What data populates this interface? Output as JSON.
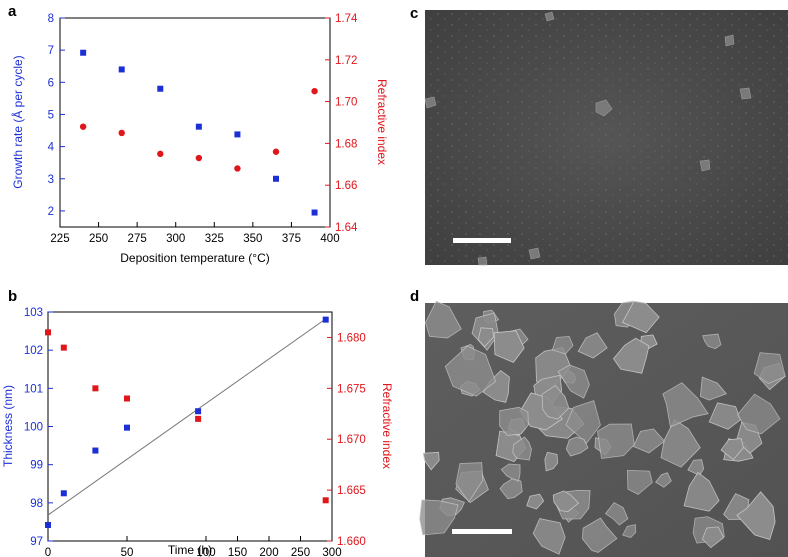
{
  "colors": {
    "left_axis": "#1c2fd6",
    "right_axis": "#e0161b",
    "fit_line": "#777777",
    "frame": "#000000",
    "sem_bg_c": "#4a4a4a",
    "sem_bg_d": "#5a5a5a"
  },
  "panels": {
    "a": {
      "letter": "a"
    },
    "b": {
      "letter": "b"
    },
    "c": {
      "letter": "c"
    },
    "d": {
      "letter": "d"
    }
  },
  "chart_data": [
    {
      "id": "a",
      "type": "scatter",
      "xlabel": "Deposition temperature (°C)",
      "ylabel_left": "Growth rate (Å per cycle)",
      "ylabel_right": "Refractive index",
      "xlim": [
        225,
        400
      ],
      "xticks": [
        "225",
        "250",
        "275",
        "300",
        "325",
        "350",
        "375",
        "400"
      ],
      "ylim_left": [
        1.5,
        8
      ],
      "yticks_left": [
        "2",
        "3",
        "4",
        "5",
        "6",
        "7",
        "8"
      ],
      "ylim_right": [
        1.64,
        1.74
      ],
      "yticks_right": [
        "1.64",
        "1.66",
        "1.68",
        "1.70",
        "1.72",
        "1.74"
      ],
      "series": [
        {
          "axis": "left",
          "marker": "square",
          "x": [
            240,
            265,
            290,
            315,
            340,
            365,
            390
          ],
          "y": [
            6.92,
            6.4,
            5.8,
            4.62,
            4.38,
            3.0,
            1.95
          ]
        },
        {
          "axis": "right",
          "marker": "circle",
          "x": [
            240,
            265,
            290,
            315,
            340,
            365,
            390
          ],
          "y": [
            1.688,
            1.685,
            1.675,
            1.673,
            1.668,
            1.676,
            1.705
          ]
        }
      ]
    },
    {
      "id": "b",
      "type": "scatter",
      "xlabel": "Time (h)",
      "ylabel_left": "Thickness (nm)",
      "ylabel_right": "Refractive index",
      "xscale": "broken: 0–100 h then 100–300 h",
      "xticks": [
        "0",
        "50",
        "100",
        "150",
        "200",
        "250",
        "300"
      ],
      "ylim_left": [
        97,
        103
      ],
      "yticks_left": [
        "97",
        "98",
        "99",
        "100",
        "101",
        "102",
        "103"
      ],
      "ylim_right": [
        1.66,
        1.6825
      ],
      "yticks_right": [
        "1.660",
        "1.665",
        "1.670",
        "1.675",
        "1.680"
      ],
      "series": [
        {
          "axis": "left",
          "marker": "square",
          "x": [
            0,
            10,
            30,
            50,
            95,
            290
          ],
          "y": [
            97.42,
            98.25,
            99.37,
            99.97,
            100.4,
            102.8
          ]
        },
        {
          "axis": "right",
          "marker": "square",
          "x": [
            0,
            10,
            30,
            50,
            95,
            290
          ],
          "y": [
            1.6805,
            1.679,
            1.675,
            1.674,
            1.672,
            1.664
          ]
        }
      ],
      "fit_line": {
        "x": [
          0,
          290
        ],
        "y": [
          97.68,
          102.82
        ]
      }
    }
  ]
}
